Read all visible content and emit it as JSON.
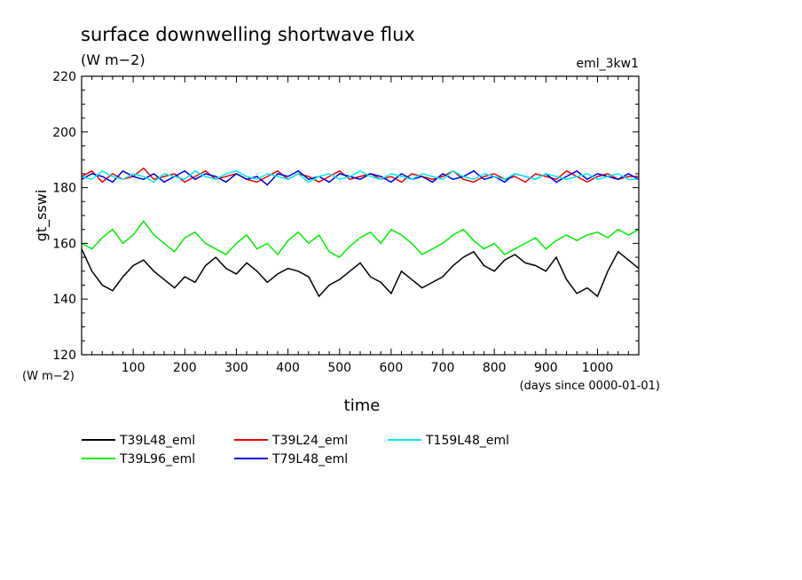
{
  "chart_data": {
    "type": "line",
    "title": "surface downwelling shortwave flux",
    "subtitle": "(W m−2)",
    "run_label": "eml_3kw1",
    "xlabel": "time",
    "x_units": "(days since 0000-01-01)",
    "ylabel": "gt_sswi",
    "y_units": "(W m−2)",
    "xlim": [
      0,
      1080
    ],
    "ylim": [
      120,
      220
    ],
    "x_ticks": [
      100,
      200,
      300,
      400,
      500,
      600,
      700,
      800,
      900,
      1000
    ],
    "y_ticks": [
      120,
      140,
      160,
      180,
      200,
      220
    ],
    "grid": false,
    "legend_position": "bottom-left",
    "series": [
      {
        "name": "T39L48_eml",
        "color": "#000000",
        "x": [
          0,
          20,
          40,
          60,
          80,
          100,
          120,
          140,
          160,
          180,
          200,
          220,
          240,
          260,
          280,
          300,
          320,
          340,
          360,
          380,
          400,
          420,
          440,
          460,
          480,
          500,
          520,
          540,
          560,
          580,
          600,
          620,
          640,
          660,
          680,
          700,
          720,
          740,
          760,
          780,
          800,
          820,
          840,
          860,
          880,
          900,
          920,
          940,
          960,
          980,
          1000,
          1020,
          1040,
          1060,
          1080
        ],
        "values": [
          158,
          150,
          145,
          143,
          148,
          152,
          154,
          150,
          147,
          144,
          148,
          146,
          152,
          155,
          151,
          149,
          153,
          150,
          146,
          149,
          151,
          150,
          148,
          141,
          145,
          147,
          150,
          153,
          148,
          146,
          142,
          150,
          147,
          144,
          146,
          148,
          152,
          155,
          157,
          152,
          150,
          154,
          156,
          153,
          152,
          150,
          155,
          147,
          142,
          144,
          141,
          150,
          157,
          154,
          151
        ]
      },
      {
        "name": "T39L96_eml",
        "color": "#00ee00",
        "x": [
          0,
          20,
          40,
          60,
          80,
          100,
          120,
          140,
          160,
          180,
          200,
          220,
          240,
          260,
          280,
          300,
          320,
          340,
          360,
          380,
          400,
          420,
          440,
          460,
          480,
          500,
          520,
          540,
          560,
          580,
          600,
          620,
          640,
          660,
          680,
          700,
          720,
          740,
          760,
          780,
          800,
          820,
          840,
          860,
          880,
          900,
          920,
          940,
          960,
          980,
          1000,
          1020,
          1040,
          1060,
          1080
        ],
        "values": [
          160,
          158,
          162,
          165,
          160,
          163,
          168,
          163,
          160,
          157,
          162,
          164,
          160,
          158,
          156,
          160,
          163,
          158,
          160,
          156,
          161,
          164,
          160,
          163,
          157,
          155,
          159,
          162,
          164,
          160,
          165,
          163,
          160,
          156,
          158,
          160,
          163,
          165,
          161,
          158,
          160,
          156,
          158,
          160,
          162,
          158,
          161,
          163,
          161,
          163,
          164,
          162,
          165,
          163,
          165
        ]
      },
      {
        "name": "T39L24_eml",
        "color": "#ee0000",
        "x": [
          0,
          20,
          40,
          60,
          80,
          100,
          120,
          140,
          160,
          180,
          200,
          220,
          240,
          260,
          280,
          300,
          320,
          340,
          360,
          380,
          400,
          420,
          440,
          460,
          480,
          500,
          520,
          540,
          560,
          580,
          600,
          620,
          640,
          660,
          680,
          700,
          720,
          740,
          760,
          780,
          800,
          820,
          840,
          860,
          880,
          900,
          920,
          940,
          960,
          980,
          1000,
          1020,
          1040,
          1060,
          1080
        ],
        "values": [
          184,
          186,
          182,
          185,
          183,
          184,
          187,
          183,
          184,
          185,
          182,
          184,
          186,
          183,
          184,
          185,
          183,
          182,
          184,
          186,
          183,
          185,
          184,
          182,
          184,
          186,
          183,
          184,
          185,
          183,
          184,
          182,
          185,
          184,
          183,
          184,
          186,
          183,
          182,
          184,
          185,
          183,
          184,
          182,
          185,
          184,
          183,
          186,
          184,
          182,
          184,
          185,
          183,
          184,
          184
        ]
      },
      {
        "name": "T79L48_eml",
        "color": "#0000dd",
        "x": [
          0,
          20,
          40,
          60,
          80,
          100,
          120,
          140,
          160,
          180,
          200,
          220,
          240,
          260,
          280,
          300,
          320,
          340,
          360,
          380,
          400,
          420,
          440,
          460,
          480,
          500,
          520,
          540,
          560,
          580,
          600,
          620,
          640,
          660,
          680,
          700,
          720,
          740,
          760,
          780,
          800,
          820,
          840,
          860,
          880,
          900,
          920,
          940,
          960,
          980,
          1000,
          1020,
          1040,
          1060,
          1080
        ],
        "values": [
          183,
          185,
          184,
          182,
          186,
          184,
          183,
          185,
          182,
          184,
          186,
          183,
          185,
          184,
          182,
          185,
          183,
          184,
          181,
          185,
          184,
          186,
          183,
          184,
          182,
          185,
          184,
          183,
          185,
          184,
          182,
          185,
          183,
          184,
          182,
          185,
          183,
          184,
          186,
          183,
          184,
          182,
          185,
          184,
          183,
          185,
          182,
          184,
          186,
          183,
          185,
          184,
          183,
          185,
          183
        ]
      },
      {
        "name": "T159L48_eml",
        "color": "#00eeee",
        "x": [
          0,
          20,
          40,
          60,
          80,
          100,
          120,
          140,
          160,
          180,
          200,
          220,
          240,
          260,
          280,
          300,
          320,
          340,
          360,
          380,
          400,
          420,
          440,
          460,
          480,
          500,
          520,
          540,
          560,
          580,
          600,
          620,
          640,
          660,
          680,
          700,
          720,
          740,
          760,
          780,
          800,
          820,
          840,
          860,
          880,
          900,
          920,
          940,
          960,
          980,
          1000,
          1020,
          1040,
          1060,
          1080
        ],
        "values": [
          184,
          183,
          186,
          184,
          183,
          185,
          184,
          182,
          185,
          184,
          183,
          186,
          184,
          183,
          185,
          186,
          184,
          183,
          185,
          184,
          183,
          185,
          182,
          184,
          185,
          183,
          184,
          186,
          184,
          183,
          185,
          184,
          183,
          185,
          184,
          183,
          186,
          184,
          183,
          185,
          184,
          183,
          185,
          184,
          183,
          185,
          184,
          183,
          184,
          185,
          183,
          184,
          185,
          183,
          183
        ]
      }
    ]
  }
}
